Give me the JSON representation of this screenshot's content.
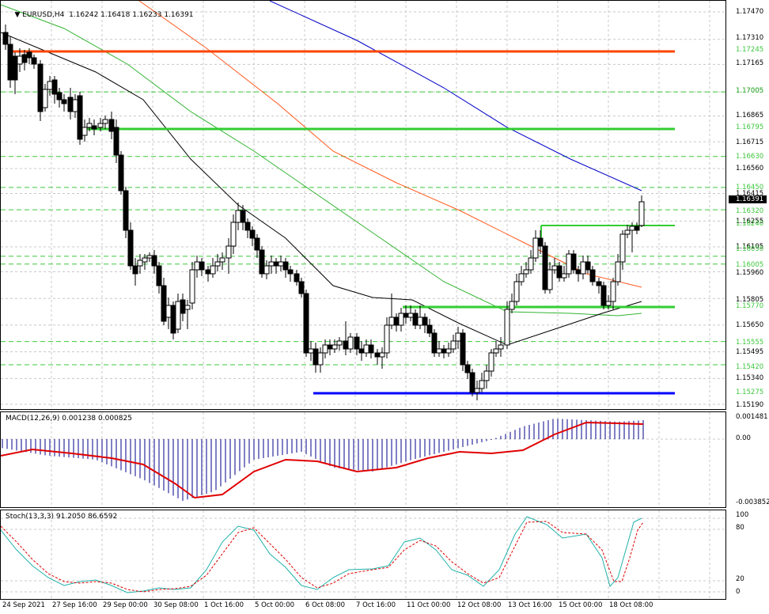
{
  "symbol_header": {
    "text": "EURUSD,H4  1.16242 1.16418 1.16233 1.16391"
  },
  "price_axis": {
    "labels": [
      "1.17470",
      "1.17310",
      "1.17165",
      "1.17005",
      "1.16865",
      "1.16715",
      "1.16560",
      "1.16415",
      "1.16255",
      "1.16105",
      "1.15960",
      "1.15805",
      "1.15650",
      "1.15495",
      "1.15340",
      "1.15190"
    ],
    "highlighted": [
      {
        "text": "1.17245",
        "color": "#3cc83c",
        "kind": "level"
      },
      {
        "text": "1.17005",
        "color": "#3cc83c",
        "kind": "level"
      },
      {
        "text": "1.16795",
        "color": "#3cc83c",
        "kind": "level"
      },
      {
        "text": "1.16630",
        "color": "#3cc83c",
        "kind": "level"
      },
      {
        "text": "1.16450",
        "color": "#3cc83c",
        "kind": "level"
      },
      {
        "text": "1.16391",
        "color": "#000000",
        "kind": "bid"
      },
      {
        "text": "1.16320",
        "color": "#3cc83c",
        "kind": "level"
      },
      {
        "text": "1.16240",
        "color": "#3cc83c",
        "kind": "level"
      },
      {
        "text": "1.16050",
        "color": "#3cc83c",
        "kind": "level"
      },
      {
        "text": "1.16005",
        "color": "#3cc83c",
        "kind": "level"
      },
      {
        "text": "1.15770",
        "color": "#3cc83c",
        "kind": "level"
      },
      {
        "text": "1.15555",
        "color": "#3cc83c",
        "kind": "level"
      },
      {
        "text": "1.15420",
        "color": "#3cc83c",
        "kind": "level"
      },
      {
        "text": "1.15275",
        "color": "#3cc83c",
        "kind": "level"
      }
    ]
  },
  "macd": {
    "label": "MACD(12,26,9) 0.001238 0.000825",
    "axis_labels": [
      "0.001481",
      "0.00",
      "-0.003852"
    ]
  },
  "stoch": {
    "label": "Stoch(13,3,3) 91.2050 86.6592",
    "axis_labels": [
      "100",
      "80",
      "20",
      "0"
    ]
  },
  "time_axis": {
    "labels": [
      "24 Sep 2021",
      "27 Sep 16:00",
      "29 Sep 00:00",
      "30 Sep 08:00",
      "1 Oct 16:00",
      "5 Oct 00:00",
      "6 Oct 08:00",
      "7 Oct 16:00",
      "11 Oct 00:00",
      "12 Oct 08:00",
      "13 Oct 16:00",
      "15 Oct 00:00",
      "18 Oct 08:00"
    ]
  },
  "colors": {
    "resistance_upper": "#ff4500",
    "levels_green": "#32cd32",
    "support_lower": "#0000ff",
    "ma_black": "#000000",
    "ma_green": "#32b432",
    "ma_orange": "#ff5a1e",
    "ma_blue": "#0000c8",
    "macd_signal": "#e00000",
    "macd_hist": "#00008b",
    "stoch_main": "#20b2aa",
    "stoch_signal": "#e00000"
  }
}
